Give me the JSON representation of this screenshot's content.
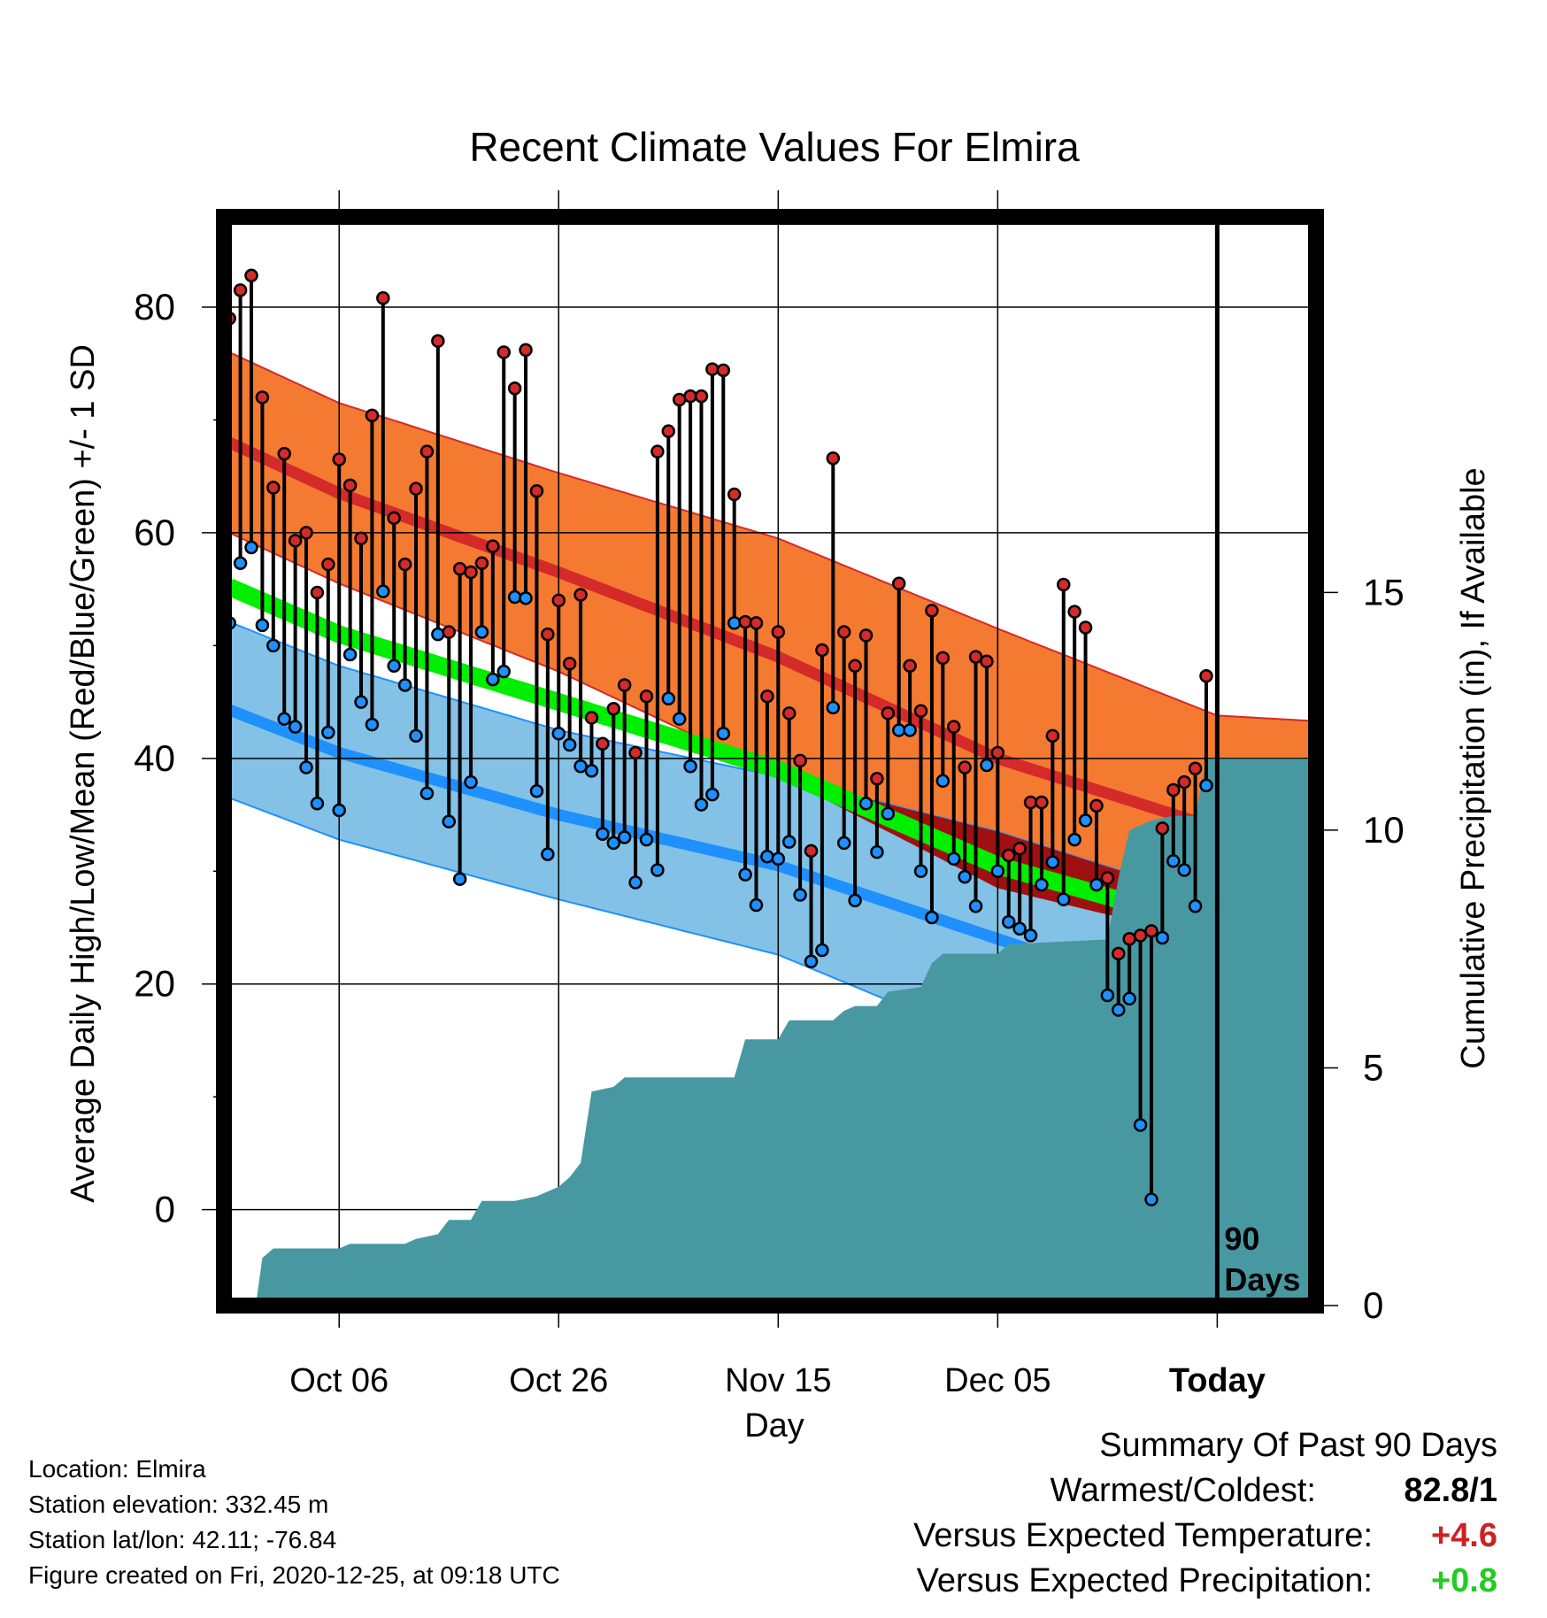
{
  "chart_data": {
    "type": "line",
    "title": "Recent Climate Values For Elmira",
    "xlabel": "Day",
    "ylabel": "Average Daily High/Low/Mean (Red/Blue/Green) +/- 1 SD",
    "y2label": "Cumulative Precipitation (in), If Available",
    "ylim": [
      -8.5,
      88
    ],
    "y2lim": [
      0,
      22.9
    ],
    "xlim_days": [
      -90.5,
      9
    ],
    "x_ticks": [
      {
        "day": -80,
        "label": "Oct 06"
      },
      {
        "day": -60,
        "label": "Oct 26"
      },
      {
        "day": -40,
        "label": "Nov 15"
      },
      {
        "day": -20,
        "label": "Dec 05"
      },
      {
        "day": 0,
        "label": "Today"
      }
    ],
    "y_ticks": [
      0,
      20,
      40,
      60,
      80
    ],
    "y2_ticks": [
      0,
      5,
      10,
      15
    ],
    "today_label": "90\nDays",
    "grid": true,
    "series": [
      {
        "name": "Normal High",
        "color": "#d42a2a",
        "values": [
          [
            -90,
            68
          ],
          [
            -80,
            63.5
          ],
          [
            -60,
            56.5
          ],
          [
            -40,
            49
          ],
          [
            -20,
            40
          ],
          [
            0,
            33.8
          ],
          [
            9,
            32.3
          ]
        ],
        "sd": [
          [
            -90,
            8
          ],
          [
            -80,
            8
          ],
          [
            -60,
            8.8
          ],
          [
            -40,
            10.5
          ],
          [
            -20,
            11.5
          ],
          [
            0,
            10
          ],
          [
            9,
            11
          ]
        ]
      },
      {
        "name": "Normal Low",
        "color": "#1e90ff",
        "values": [
          [
            -90,
            44.3
          ],
          [
            -80,
            40.5
          ],
          [
            -60,
            35
          ],
          [
            -40,
            30.5
          ],
          [
            -20,
            24
          ],
          [
            0,
            17.5
          ],
          [
            9,
            15.5
          ]
        ],
        "sd": [
          [
            -90,
            7.8
          ],
          [
            -80,
            7.7
          ],
          [
            -60,
            7.5
          ],
          [
            -40,
            7.9
          ],
          [
            -20,
            9.5
          ],
          [
            0,
            9.8
          ],
          [
            9,
            11
          ]
        ]
      },
      {
        "name": "Normal Mean",
        "color": "#00ee00",
        "values": [
          [
            -90,
            55.2
          ],
          [
            -80,
            51
          ],
          [
            -60,
            45
          ],
          [
            -40,
            39
          ],
          [
            -20,
            30.5
          ],
          [
            0,
            25
          ],
          [
            9,
            22.7
          ]
        ]
      }
    ],
    "daily": [
      [
        -90,
        79,
        52
      ],
      [
        -89,
        81.5,
        57.3
      ],
      [
        -88,
        82.8,
        58.7
      ],
      [
        -87,
        72,
        51.8
      ],
      [
        -86,
        64,
        50
      ],
      [
        -85,
        67,
        43.5
      ],
      [
        -84,
        59.3,
        42.8
      ],
      [
        -83,
        60,
        39.2
      ],
      [
        -82,
        54.7,
        36
      ],
      [
        -81,
        57.2,
        42.3
      ],
      [
        -80,
        66.5,
        35.4
      ],
      [
        -79,
        64.2,
        49.2
      ],
      [
        -78,
        59.5,
        45
      ],
      [
        -77,
        70.4,
        43
      ],
      [
        -76,
        80.8,
        54.8
      ],
      [
        -75,
        61.3,
        48.2
      ],
      [
        -74,
        57.2,
        46.5
      ],
      [
        -73,
        63.9,
        42
      ],
      [
        -72,
        67.2,
        36.9
      ],
      [
        -71,
        77,
        51
      ],
      [
        -70,
        51.2,
        34.4
      ],
      [
        -69,
        56.8,
        29.3
      ],
      [
        -68,
        56.5,
        37.9
      ],
      [
        -67,
        57.3,
        51.2
      ],
      [
        -66,
        58.8,
        47
      ],
      [
        -65,
        76,
        47.7
      ],
      [
        -64,
        72.8,
        54.3
      ],
      [
        -63,
        76.2,
        54.2
      ],
      [
        -62,
        63.7,
        37.1
      ],
      [
        -61,
        51,
        31.5
      ],
      [
        -60,
        54,
        42.2
      ],
      [
        -59,
        48.4,
        41.2
      ],
      [
        -58,
        54.5,
        39.3
      ],
      [
        -57,
        43.6,
        38.9
      ],
      [
        -56,
        41.3,
        33.3
      ],
      [
        -55,
        44.4,
        32.5
      ],
      [
        -54,
        46.5,
        33
      ],
      [
        -53,
        40.5,
        29
      ],
      [
        -52,
        45.5,
        32.8
      ],
      [
        -51,
        67.2,
        30.1
      ],
      [
        -50,
        69,
        45.3
      ],
      [
        -49,
        71.8,
        43.5
      ],
      [
        -48,
        72.1,
        39.3
      ],
      [
        -47,
        72.1,
        35.9
      ],
      [
        -46,
        74.5,
        36.8
      ],
      [
        -45,
        74.4,
        42.2
      ],
      [
        -44,
        63.4,
        52
      ],
      [
        -43,
        52.1,
        29.7
      ],
      [
        -42,
        52,
        27
      ],
      [
        -41,
        45.5,
        31.3
      ],
      [
        -40,
        51.2,
        31.1
      ],
      [
        -39,
        44,
        32.6
      ],
      [
        -38,
        39.8,
        27.9
      ],
      [
        -37,
        31.8,
        22
      ],
      [
        -36,
        49.6,
        23
      ],
      [
        -35,
        66.6,
        44.5
      ],
      [
        -34,
        51.2,
        32.5
      ],
      [
        -33,
        48.2,
        27.4
      ],
      [
        -32,
        50.9,
        36
      ],
      [
        -31,
        38.2,
        31.7
      ],
      [
        -30,
        44,
        35.1
      ],
      [
        -29,
        55.5,
        42.5
      ],
      [
        -28,
        48.2,
        42.5
      ],
      [
        -27,
        44.2,
        30
      ],
      [
        -26,
        53.1,
        25.9
      ],
      [
        -25,
        48.9,
        38
      ],
      [
        -24,
        42.8,
        31.1
      ],
      [
        -23,
        39.2,
        29.5
      ],
      [
        -22,
        49,
        26.9
      ],
      [
        -21,
        48.6,
        39.4
      ],
      [
        -20,
        40.5,
        30
      ],
      [
        -19,
        31.4,
        25.5
      ],
      [
        -18,
        32,
        24.9
      ],
      [
        -17,
        36.1,
        24.3
      ],
      [
        -16,
        36.1,
        28.8
      ],
      [
        -15,
        42,
        30.8
      ],
      [
        -14,
        55.4,
        27.5
      ],
      [
        -13,
        53,
        32.8
      ],
      [
        -12,
        51.6,
        34.5
      ],
      [
        -11,
        35.8,
        28.8
      ],
      [
        -10,
        29.4,
        19
      ],
      [
        -9,
        22.7,
        17.7
      ],
      [
        -8,
        24,
        18.7
      ],
      [
        -7,
        24.3,
        7.5
      ],
      [
        -6,
        24.7,
        0.9
      ],
      [
        -5,
        33.8,
        24.1
      ],
      [
        -4,
        37.2,
        30.9
      ],
      [
        -3,
        37.9,
        30.1
      ],
      [
        -2,
        39.1,
        26.9
      ],
      [
        -1,
        47.3,
        37.6
      ]
    ],
    "precip": [
      [
        -90,
        0
      ],
      [
        -87.6,
        0
      ],
      [
        -87,
        1
      ],
      [
        -86,
        1.2
      ],
      [
        -80,
        1.2
      ],
      [
        -79,
        1.3
      ],
      [
        -74,
        1.3
      ],
      [
        -73,
        1.4
      ],
      [
        -71,
        1.5
      ],
      [
        -70,
        1.8
      ],
      [
        -68,
        1.8
      ],
      [
        -67,
        2.2
      ],
      [
        -64,
        2.2
      ],
      [
        -62,
        2.3
      ],
      [
        -60,
        2.5
      ],
      [
        -59,
        2.7
      ],
      [
        -58,
        3
      ],
      [
        -57,
        4.5
      ],
      [
        -55,
        4.6
      ],
      [
        -54,
        4.8
      ],
      [
        -44,
        4.8
      ],
      [
        -43,
        5.6
      ],
      [
        -40,
        5.6
      ],
      [
        -39,
        6
      ],
      [
        -35,
        6
      ],
      [
        -34,
        6.2
      ],
      [
        -33,
        6.3
      ],
      [
        -31,
        6.3
      ],
      [
        -30,
        6.6
      ],
      [
        -27,
        6.7
      ],
      [
        -26,
        7.2
      ],
      [
        -25,
        7.4
      ],
      [
        -20,
        7.4
      ],
      [
        -19,
        7.6
      ],
      [
        -10,
        7.7
      ],
      [
        -9,
        9
      ],
      [
        -8,
        10
      ],
      [
        -6,
        10.2
      ],
      [
        -4,
        10.3
      ],
      [
        -2,
        10.3
      ],
      [
        -1,
        11.5
      ],
      [
        9,
        11.5
      ]
    ]
  },
  "station": {
    "location": "Location: Elmira",
    "elevation": "Station elevation: 332.45 m",
    "latlon": "Station lat/lon: 42.11; -76.84",
    "created": "Figure created on Fri, 2020-12-25, at 09:18 UTC"
  },
  "summary": {
    "title": "Summary Of Past 90 Days",
    "rows": [
      {
        "label": "Warmest/Coldest:",
        "value": "82.8/1",
        "color": "#000000"
      },
      {
        "label": "Versus Expected Temperature:",
        "value": "+4.6",
        "color": "#cc2222"
      },
      {
        "label": "Versus Expected Precipitation:",
        "value": "+0.8",
        "color": "#22cc22"
      }
    ]
  },
  "colors": {
    "high_band": "#f37a30",
    "high_line": "#d42a2a",
    "low_band": "#83c1e6",
    "low_line": "#1e90ff",
    "mean_line": "#00ee00",
    "overlap_band": "#a01010",
    "precip": "#4898a2",
    "high_point": "#d42a2a",
    "low_point": "#1e90ff"
  }
}
